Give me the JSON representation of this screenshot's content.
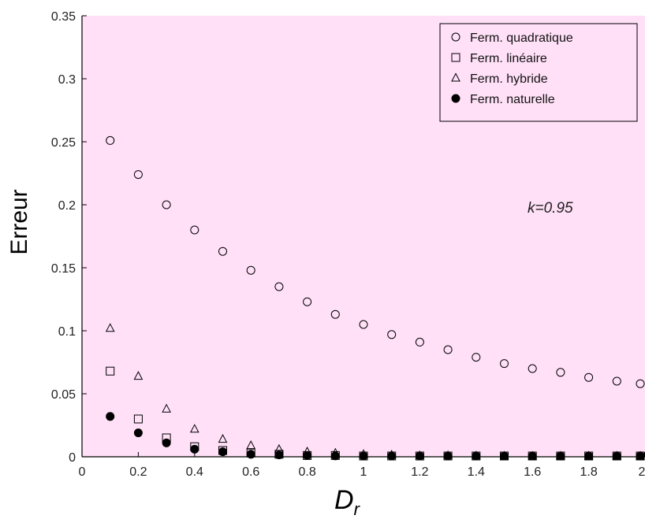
{
  "chart_data": {
    "type": "scatter",
    "title": "",
    "xlabel": "D",
    "xlabel_subscript": "r",
    "ylabel": "Erreur",
    "xlim": [
      0,
      2
    ],
    "ylim": [
      0,
      0.35
    ],
    "xticks": [
      0,
      0.2,
      0.4,
      0.6,
      0.8,
      1,
      1.2,
      1.4,
      1.6,
      1.8,
      2
    ],
    "xtick_labels": [
      "0",
      "0.2",
      "0.4",
      "0.6",
      "0.8",
      "1",
      "1.2",
      "1.4",
      "1.6",
      "1.8",
      "2"
    ],
    "yticks": [
      0,
      0.05,
      0.1,
      0.15,
      0.2,
      0.25,
      0.3,
      0.35
    ],
    "ytick_labels": [
      "0",
      "0.05",
      "0.1",
      "0.15",
      "0.2",
      "0.25",
      "0.3",
      "0.35"
    ],
    "grid": false,
    "legend_position": "top-right",
    "annotation": "k=0.95",
    "plot_background": "#ffe0f7",
    "x": [
      0.1,
      0.2,
      0.3,
      0.4,
      0.5,
      0.6,
      0.7,
      0.8,
      0.9,
      1.0,
      1.1,
      1.2,
      1.3,
      1.4,
      1.5,
      1.6,
      1.7,
      1.8,
      1.9,
      2.0
    ],
    "series": [
      {
        "name": "Ferm. quadratique",
        "marker": "circle-open",
        "values": [
          0.251,
          0.224,
          0.2,
          0.18,
          0.163,
          0.148,
          0.135,
          0.123,
          0.113,
          0.105,
          0.097,
          0.091,
          0.085,
          0.079,
          0.074,
          0.07,
          0.067,
          0.063,
          0.06,
          0.058
        ]
      },
      {
        "name": "Ferm. linéaire",
        "marker": "square-open",
        "values": [
          0.068,
          0.03,
          0.015,
          0.008,
          0.005,
          0.003,
          0.002,
          0.001,
          0.001,
          0.0005,
          0.0004,
          0.0003,
          0.0002,
          0.0002,
          0.0001,
          0.0001,
          0.0001,
          0.0001,
          0.0001,
          0.0001
        ]
      },
      {
        "name": "Ferm. hybride",
        "marker": "triangle-open",
        "values": [
          0.102,
          0.064,
          0.038,
          0.022,
          0.014,
          0.009,
          0.006,
          0.004,
          0.003,
          0.002,
          0.0015,
          0.001,
          0.001,
          0.0008,
          0.0006,
          0.0005,
          0.0004,
          0.0003,
          0.0003,
          0.0002
        ]
      },
      {
        "name": "Ferm. naturelle",
        "marker": "circle-filled",
        "values": [
          0.032,
          0.019,
          0.011,
          0.006,
          0.004,
          0.002,
          0.0015,
          0.001,
          0.0007,
          0.0005,
          0.0004,
          0.0003,
          0.0002,
          0.0002,
          0.0001,
          0.0001,
          0.0001,
          0.0001,
          0.0001,
          0.0001
        ]
      }
    ]
  }
}
